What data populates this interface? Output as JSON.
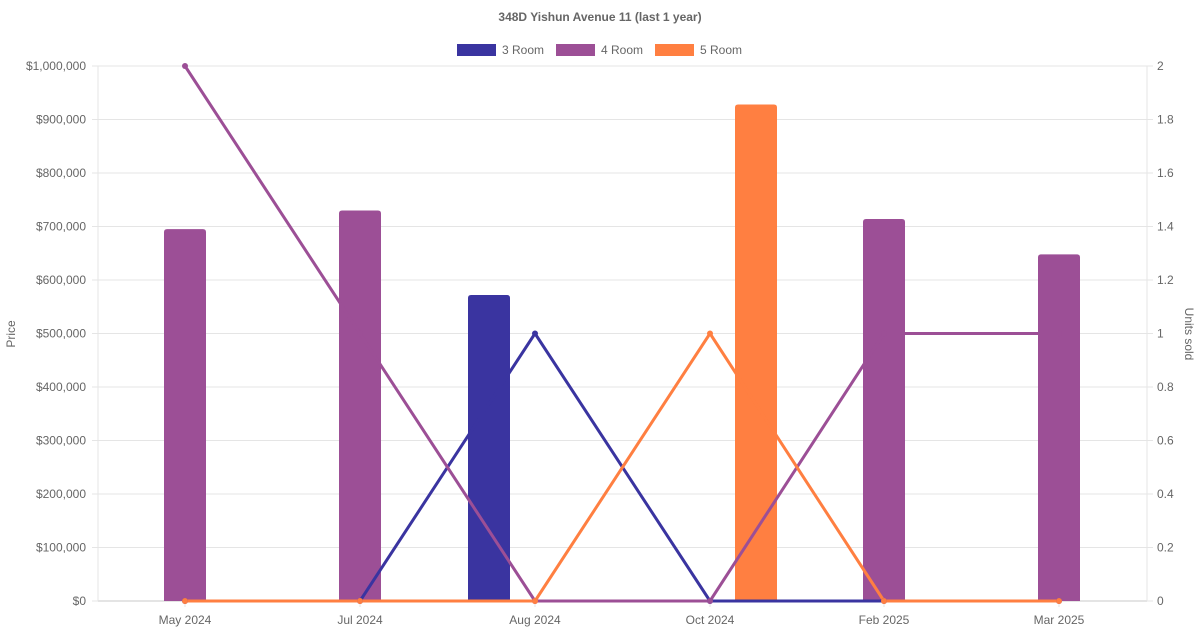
{
  "chart_data": {
    "type": "bar",
    "title": "348D Yishun Avenue 11 (last 1 year)",
    "categories": [
      "May 2024",
      "Jul 2024",
      "Aug 2024",
      "Oct 2024",
      "Feb 2025",
      "Mar 2025"
    ],
    "y_left": {
      "label": "Price",
      "ylim": [
        0,
        1000000
      ],
      "ticks": [
        "$0",
        "$100,000",
        "$200,000",
        "$300,000",
        "$400,000",
        "$500,000",
        "$600,000",
        "$700,000",
        "$800,000",
        "$900,000",
        "$1,000,000"
      ]
    },
    "y_right": {
      "label": "Units sold",
      "ylim": [
        0,
        2
      ],
      "ticks": [
        "0",
        "0.2",
        "0.4",
        "0.6",
        "0.8",
        "1",
        "1.2",
        "1.4",
        "1.6",
        "1.8",
        "2"
      ]
    },
    "legend": {
      "position": "top",
      "entries": [
        {
          "name": "3 Room",
          "color": "#3a34a0"
        },
        {
          "name": "4 Room",
          "color": "#9c4f96"
        },
        {
          "name": "5 Room",
          "color": "#ff7f41"
        }
      ]
    },
    "bar_series": [
      {
        "name": "3 Room",
        "color": "#3a34a0",
        "values": [
          null,
          null,
          572000,
          null,
          null,
          null
        ]
      },
      {
        "name": "4 Room",
        "color": "#9c4f96",
        "values": [
          695000,
          730000,
          null,
          null,
          714000,
          648000
        ]
      },
      {
        "name": "5 Room",
        "color": "#ff7f41",
        "values": [
          null,
          null,
          null,
          928000,
          null,
          null
        ]
      }
    ],
    "line_series": [
      {
        "name": "3 Room",
        "color": "#3a34a0",
        "axis": "right",
        "values": [
          0,
          0,
          1,
          0,
          0,
          0
        ]
      },
      {
        "name": "4 Room",
        "color": "#9c4f96",
        "axis": "right",
        "values": [
          2,
          1,
          0,
          0,
          1,
          1
        ]
      },
      {
        "name": "5 Room",
        "color": "#ff7f41",
        "axis": "right",
        "values": [
          0,
          0,
          0,
          1,
          0,
          0
        ]
      }
    ],
    "grid": true
  }
}
